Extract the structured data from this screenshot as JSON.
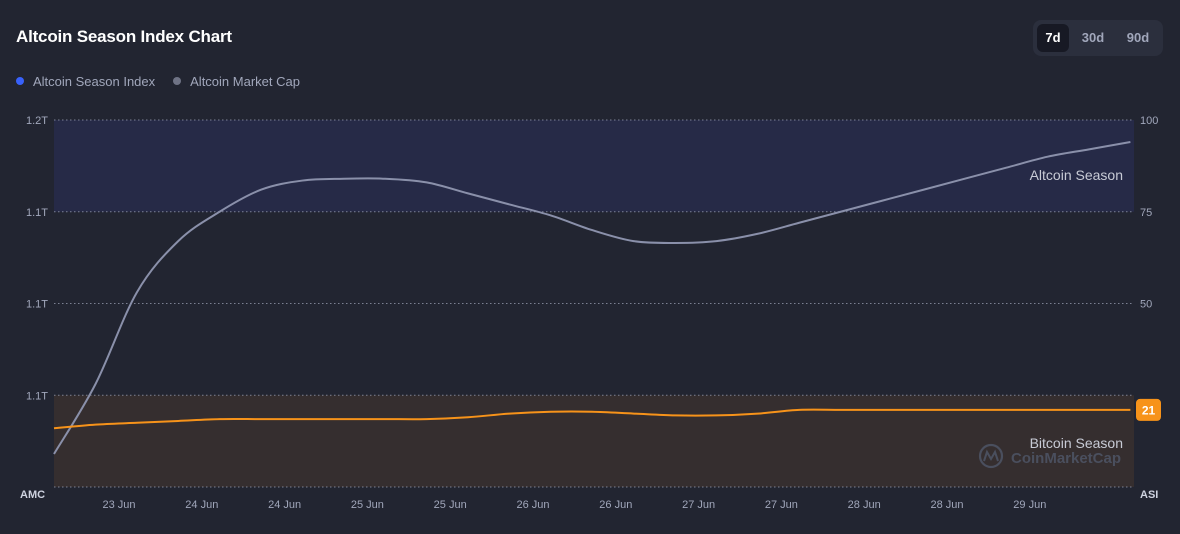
{
  "title": "Altcoin Season Index Chart",
  "ranges": [
    "7d",
    "30d",
    "90d"
  ],
  "active_range": "7d",
  "watermark": "CoinMarketCap",
  "colors": {
    "background": "#222531",
    "index_line": "#f7931a",
    "market_cap_line": "#8a90aa",
    "altcoin_band": "#262a47",
    "bitcoin_band": "#352e2f",
    "index_dot": "#3861fb",
    "market_cap_dot": "#6f7385"
  },
  "chart_data": {
    "type": "line",
    "legend": {
      "placement": "top-left",
      "entries": [
        "Altcoin Season Index",
        "Altcoin Market Cap"
      ]
    },
    "x_tick_labels": [
      "23 Jun",
      "24 Jun",
      "24 Jun",
      "25 Jun",
      "25 Jun",
      "26 Jun",
      "26 Jun",
      "27 Jun",
      "27 Jun",
      "28 Jun",
      "28 Jun",
      "29 Jun"
    ],
    "left_axis": {
      "label": "AMC",
      "tick_labels": [
        "1.2T",
        "1.1T",
        "1.1T",
        "1.1T"
      ]
    },
    "right_axis": {
      "label": "ASI",
      "range": [
        0,
        100
      ],
      "ticks": [
        100,
        75,
        50
      ]
    },
    "bands": [
      {
        "label": "Altcoin Season",
        "range": [
          75,
          100
        ]
      },
      {
        "label": "Bitcoin Season",
        "range": [
          0,
          25
        ]
      }
    ],
    "grid": true,
    "series": [
      {
        "name": "Altcoin Season Index",
        "axis": "right",
        "x": [
          0,
          0.5,
          1,
          1.5,
          2,
          2.5,
          3,
          3.5,
          4,
          4.5,
          5,
          5.5,
          6,
          6.5,
          7,
          7.5,
          8,
          8.5,
          9,
          9.5,
          10,
          10.5,
          11,
          11.5,
          12,
          12.5,
          13
        ],
        "values": [
          16,
          17,
          17.5,
          18,
          18.5,
          18.5,
          18.5,
          18.5,
          18.5,
          18.5,
          19,
          20,
          20.5,
          20.5,
          20,
          19.5,
          19.5,
          20,
          21,
          21,
          21,
          21,
          21,
          21,
          21,
          21,
          21
        ],
        "last_value": 21
      },
      {
        "name": "Altcoin Market Cap",
        "axis": "left",
        "x": [
          0,
          0.5,
          1,
          1.5,
          2,
          2.5,
          3,
          3.5,
          4,
          4.5,
          5,
          5.5,
          6,
          6.5,
          7,
          7.5,
          8,
          8.5,
          9,
          9.5,
          10,
          10.5,
          11,
          11.5,
          12,
          12.5,
          13
        ],
        "values": [
          9,
          28,
          53,
          67,
          75,
          81,
          83.5,
          84,
          84,
          83,
          80,
          77,
          74,
          70,
          67,
          66.5,
          67,
          69,
          72,
          75,
          78,
          81,
          84,
          87,
          90,
          92,
          94
        ]
      }
    ]
  }
}
